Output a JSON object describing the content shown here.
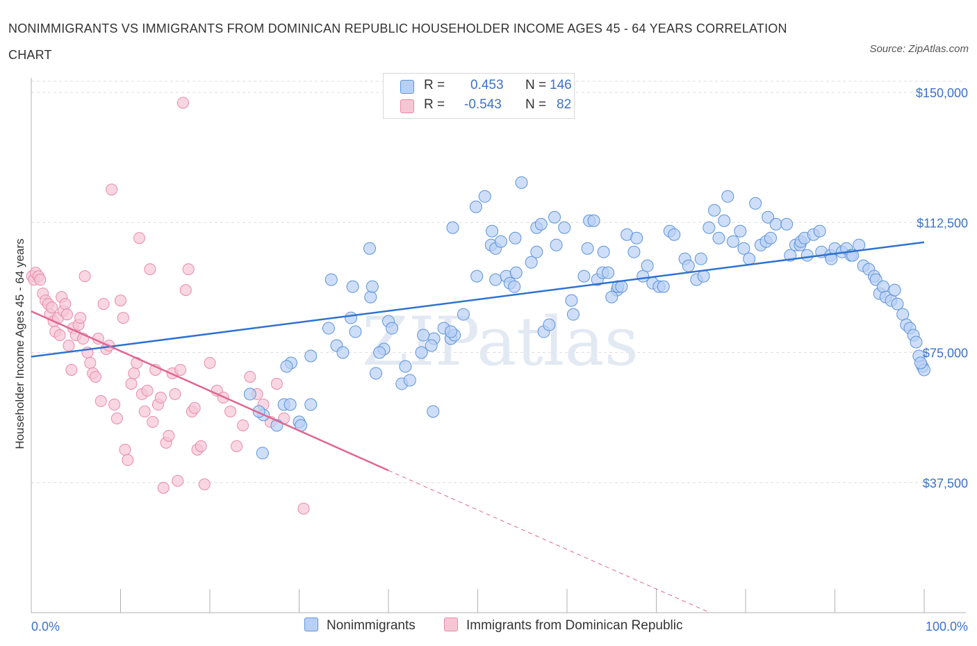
{
  "title": "NONIMMIGRANTS VS IMMIGRANTS FROM DOMINICAN REPUBLIC HOUSEHOLDER INCOME AGES 45 - 64 YEARS CORRELATION CHART",
  "source": "Source: ZipAtlas.com",
  "watermark": "ZIPatlas",
  "legend": {
    "r_label": "R =",
    "n_label": "N =",
    "rows": [
      {
        "name": "Nonimmigrants",
        "r": "0.453",
        "n": "146"
      },
      {
        "name": "Immigrants from Dominican Republic",
        "r": "-0.543",
        "n": "82"
      }
    ]
  },
  "colors": {
    "blue_fill": "#b9d0f5",
    "blue_stroke": "#5b93d9",
    "blue_line": "#2f72d0",
    "pink_fill": "#f7c6d5",
    "pink_stroke": "#e889a8",
    "pink_line": "#e0668e",
    "tick_text": "#3b72c9",
    "grid": "#dddddd"
  },
  "chart_data": {
    "type": "scatter",
    "title": "NONIMMIGRANTS VS IMMIGRANTS FROM DOMINICAN REPUBLIC HOUSEHOLDER INCOME AGES 45 - 64 YEARS CORRELATION CHART",
    "xlabel": "",
    "ylabel": "Householder Income Ages 45 - 64 years",
    "x_range": [
      0,
      100
    ],
    "y_range": [
      0,
      150000
    ],
    "x_tick_labels": [
      "0.0%",
      "100.0%"
    ],
    "y_ticks": [
      {
        "value": 37500,
        "label": "$37,500"
      },
      {
        "value": 75000,
        "label": "$75,000"
      },
      {
        "value": 112500,
        "label": "$112,500"
      },
      {
        "value": 150000,
        "label": "$150,000"
      }
    ],
    "grid": true,
    "legend_position": "top-center",
    "series": [
      {
        "name": "Nonimmigrants",
        "color": "#5b93d9",
        "trend": {
          "x0": 0,
          "y0": 73800,
          "x1": 100,
          "y1": 106800
        },
        "points": [
          [
            25.9,
            46
          ],
          [
            27.5,
            54
          ],
          [
            26.0,
            57
          ],
          [
            30.0,
            55
          ],
          [
            30.2,
            54
          ],
          [
            28.3,
            60
          ],
          [
            29.0,
            60
          ],
          [
            24.5,
            63
          ],
          [
            25.5,
            58
          ],
          [
            31.3,
            60
          ],
          [
            29.1,
            72
          ],
          [
            28.6,
            71
          ],
          [
            33.3,
            82
          ],
          [
            34.2,
            77
          ],
          [
            34.9,
            75
          ],
          [
            33.6,
            96
          ],
          [
            31.3,
            74
          ],
          [
            35.8,
            85
          ],
          [
            36.3,
            81
          ],
          [
            38.0,
            91
          ],
          [
            38.2,
            94
          ],
          [
            36.0,
            94
          ],
          [
            37.9,
            105
          ],
          [
            38.6,
            69
          ],
          [
            40.0,
            84
          ],
          [
            39.5,
            76
          ],
          [
            39.0,
            75
          ],
          [
            40.4,
            82
          ],
          [
            41.9,
            71
          ],
          [
            41.5,
            66
          ],
          [
            42.4,
            67
          ],
          [
            45.0,
            58
          ],
          [
            43.7,
            75
          ],
          [
            45.1,
            79
          ],
          [
            43.9,
            80
          ],
          [
            46.2,
            82
          ],
          [
            44.8,
            77
          ],
          [
            47.0,
            79
          ],
          [
            47.4,
            80
          ],
          [
            47.2,
            111
          ],
          [
            48.4,
            86
          ],
          [
            47.0,
            81
          ],
          [
            49.9,
            97
          ],
          [
            49.8,
            117
          ],
          [
            50.8,
            120
          ],
          [
            51.5,
            106
          ],
          [
            51.6,
            110
          ],
          [
            52.0,
            105
          ],
          [
            52.0,
            96
          ],
          [
            52.6,
            107
          ],
          [
            53.2,
            97
          ],
          [
            54.2,
            108
          ],
          [
            53.6,
            95
          ],
          [
            54.3,
            98
          ],
          [
            54.1,
            94
          ],
          [
            54.9,
            124
          ],
          [
            56.0,
            101
          ],
          [
            56.6,
            104
          ],
          [
            56.6,
            111
          ],
          [
            57.1,
            112
          ],
          [
            57.4,
            81
          ],
          [
            58.0,
            83
          ],
          [
            58.6,
            114
          ],
          [
            58.8,
            106
          ],
          [
            59.7,
            111
          ],
          [
            60.7,
            86
          ],
          [
            61.9,
            97
          ],
          [
            62.3,
            105
          ],
          [
            62.5,
            113
          ],
          [
            63.0,
            113
          ],
          [
            63.4,
            96
          ],
          [
            64.0,
            98
          ],
          [
            64.6,
            98
          ],
          [
            64.1,
            104
          ],
          [
            65.6,
            93
          ],
          [
            65.7,
            94
          ],
          [
            66.1,
            94
          ],
          [
            66.7,
            109
          ],
          [
            67.5,
            104
          ],
          [
            67.8,
            108
          ],
          [
            68.5,
            97
          ],
          [
            69.0,
            100
          ],
          [
            69.6,
            95
          ],
          [
            70.3,
            94
          ],
          [
            70.8,
            94
          ],
          [
            71.5,
            110
          ],
          [
            72.0,
            109
          ],
          [
            73.2,
            102
          ],
          [
            73.6,
            100
          ],
          [
            74.5,
            96
          ],
          [
            75.0,
            102
          ],
          [
            75.3,
            97
          ],
          [
            75.9,
            111
          ],
          [
            76.5,
            116
          ],
          [
            77.0,
            108
          ],
          [
            77.6,
            113
          ],
          [
            78.0,
            120
          ],
          [
            78.6,
            107
          ],
          [
            79.4,
            110
          ],
          [
            79.8,
            105
          ],
          [
            80.4,
            102
          ],
          [
            81.1,
            118
          ],
          [
            81.7,
            106
          ],
          [
            82.3,
            107
          ],
          [
            82.8,
            108
          ],
          [
            82.5,
            114
          ],
          [
            83.4,
            112
          ],
          [
            84.6,
            112
          ],
          [
            85.0,
            103
          ],
          [
            85.6,
            106
          ],
          [
            86.1,
            106
          ],
          [
            86.2,
            107
          ],
          [
            86.6,
            108
          ],
          [
            86.9,
            103
          ],
          [
            87.6,
            109
          ],
          [
            88.3,
            110
          ],
          [
            88.5,
            104
          ],
          [
            89.5,
            103
          ],
          [
            89.6,
            102
          ],
          [
            90.0,
            105
          ],
          [
            90.8,
            104
          ],
          [
            91.3,
            105
          ],
          [
            91.8,
            103
          ],
          [
            92.0,
            103
          ],
          [
            92.7,
            106
          ],
          [
            93.2,
            100
          ],
          [
            93.8,
            99
          ],
          [
            94.4,
            97
          ],
          [
            94.6,
            96
          ],
          [
            95.0,
            92
          ],
          [
            95.4,
            94
          ],
          [
            95.7,
            91
          ],
          [
            96.3,
            90
          ],
          [
            96.7,
            93
          ],
          [
            97.0,
            89
          ],
          [
            97.6,
            86
          ],
          [
            98.0,
            83
          ],
          [
            98.4,
            82
          ],
          [
            98.8,
            80
          ],
          [
            99.1,
            78
          ],
          [
            99.4,
            74
          ],
          [
            99.8,
            71
          ],
          [
            100.0,
            70
          ],
          [
            99.6,
            72
          ],
          [
            60.5,
            90
          ],
          [
            65.0,
            91
          ]
        ]
      },
      {
        "name": "Immigrants from Dominican Republic",
        "color": "#e889a8",
        "trend": {
          "x0": 0,
          "y0": 86900,
          "x1": 40,
          "y1": 41000
        },
        "projection": {
          "x0": 40,
          "y0": 41000,
          "x1": 76,
          "y1": 0
        },
        "points": [
          [
            0.1,
            97
          ],
          [
            0.3,
            96
          ],
          [
            0.5,
            98
          ],
          [
            0.8,
            97
          ],
          [
            1.0,
            96
          ],
          [
            1.3,
            92
          ],
          [
            1.6,
            90
          ],
          [
            1.9,
            89
          ],
          [
            2.1,
            86
          ],
          [
            2.3,
            88
          ],
          [
            2.5,
            84
          ],
          [
            2.7,
            81
          ],
          [
            3.0,
            85
          ],
          [
            3.2,
            80
          ],
          [
            3.4,
            91
          ],
          [
            3.6,
            87
          ],
          [
            3.8,
            89
          ],
          [
            4.0,
            86
          ],
          [
            4.2,
            77
          ],
          [
            4.5,
            70
          ],
          [
            4.7,
            82
          ],
          [
            5.0,
            80
          ],
          [
            5.3,
            83
          ],
          [
            5.5,
            85
          ],
          [
            5.8,
            79
          ],
          [
            6.0,
            97
          ],
          [
            6.3,
            75
          ],
          [
            6.6,
            72
          ],
          [
            6.9,
            69
          ],
          [
            7.2,
            68
          ],
          [
            7.5,
            79
          ],
          [
            7.8,
            61
          ],
          [
            8.1,
            89
          ],
          [
            8.4,
            76
          ],
          [
            8.7,
            77
          ],
          [
            9.0,
            122
          ],
          [
            9.3,
            60
          ],
          [
            9.6,
            56
          ],
          [
            10.0,
            90
          ],
          [
            10.3,
            85
          ],
          [
            10.5,
            47
          ],
          [
            10.8,
            44
          ],
          [
            11.2,
            66
          ],
          [
            11.5,
            69
          ],
          [
            11.8,
            72
          ],
          [
            12.1,
            108
          ],
          [
            12.4,
            63
          ],
          [
            12.7,
            58
          ],
          [
            13.0,
            64
          ],
          [
            13.3,
            99
          ],
          [
            13.6,
            55
          ],
          [
            13.9,
            70
          ],
          [
            14.2,
            60
          ],
          [
            14.5,
            62
          ],
          [
            14.8,
            36
          ],
          [
            15.1,
            49
          ],
          [
            15.4,
            51
          ],
          [
            15.8,
            69
          ],
          [
            16.1,
            63
          ],
          [
            16.4,
            38
          ],
          [
            16.7,
            70
          ],
          [
            17.0,
            147
          ],
          [
            17.3,
            93
          ],
          [
            17.6,
            99
          ],
          [
            18.0,
            58
          ],
          [
            18.3,
            59
          ],
          [
            18.6,
            47
          ],
          [
            19.0,
            48
          ],
          [
            19.4,
            37
          ],
          [
            20.0,
            72
          ],
          [
            20.8,
            64
          ],
          [
            21.5,
            62
          ],
          [
            22.3,
            58
          ],
          [
            23.0,
            48
          ],
          [
            23.7,
            54
          ],
          [
            24.5,
            68
          ],
          [
            25.3,
            63
          ],
          [
            26.0,
            60
          ],
          [
            26.8,
            55
          ],
          [
            27.5,
            66
          ],
          [
            28.3,
            56
          ],
          [
            30.5,
            30
          ]
        ]
      }
    ]
  }
}
